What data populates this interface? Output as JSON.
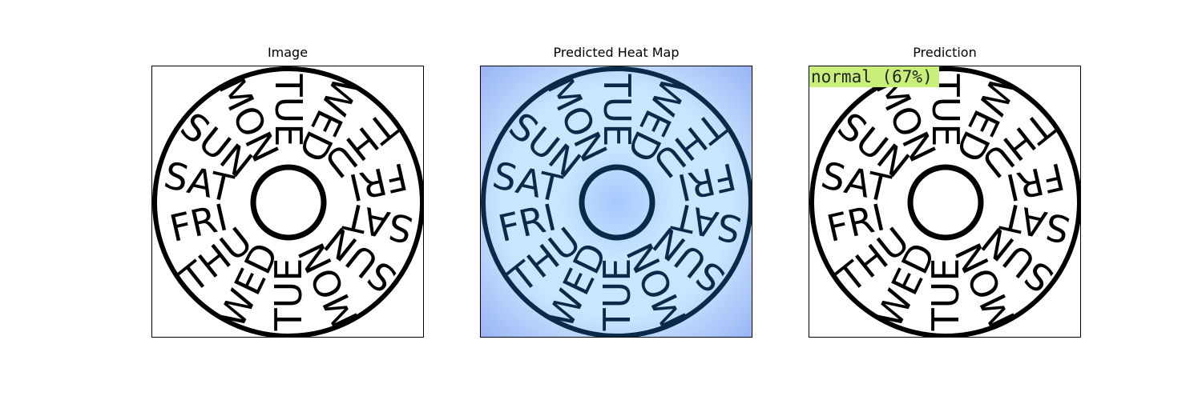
{
  "panels": [
    {
      "title": "Image"
    },
    {
      "title": "Predicted Heat Map"
    },
    {
      "title": "Prediction",
      "label": "normal (67%)",
      "label_color": "#c8f078"
    }
  ],
  "dial": {
    "days": [
      "TUE",
      "WED",
      "THU",
      "FRI",
      "SAT",
      "SUN",
      "MON",
      "TUE",
      "WED",
      "THU",
      "FRI",
      "SAT",
      "SUN",
      "MON"
    ],
    "ink_color": "#000000",
    "heatmap_ink_color": "#0b2a4a",
    "heatmap_colors": [
      "#a6c8ff",
      "#c9e6ff",
      "#9ab4f5"
    ]
  }
}
